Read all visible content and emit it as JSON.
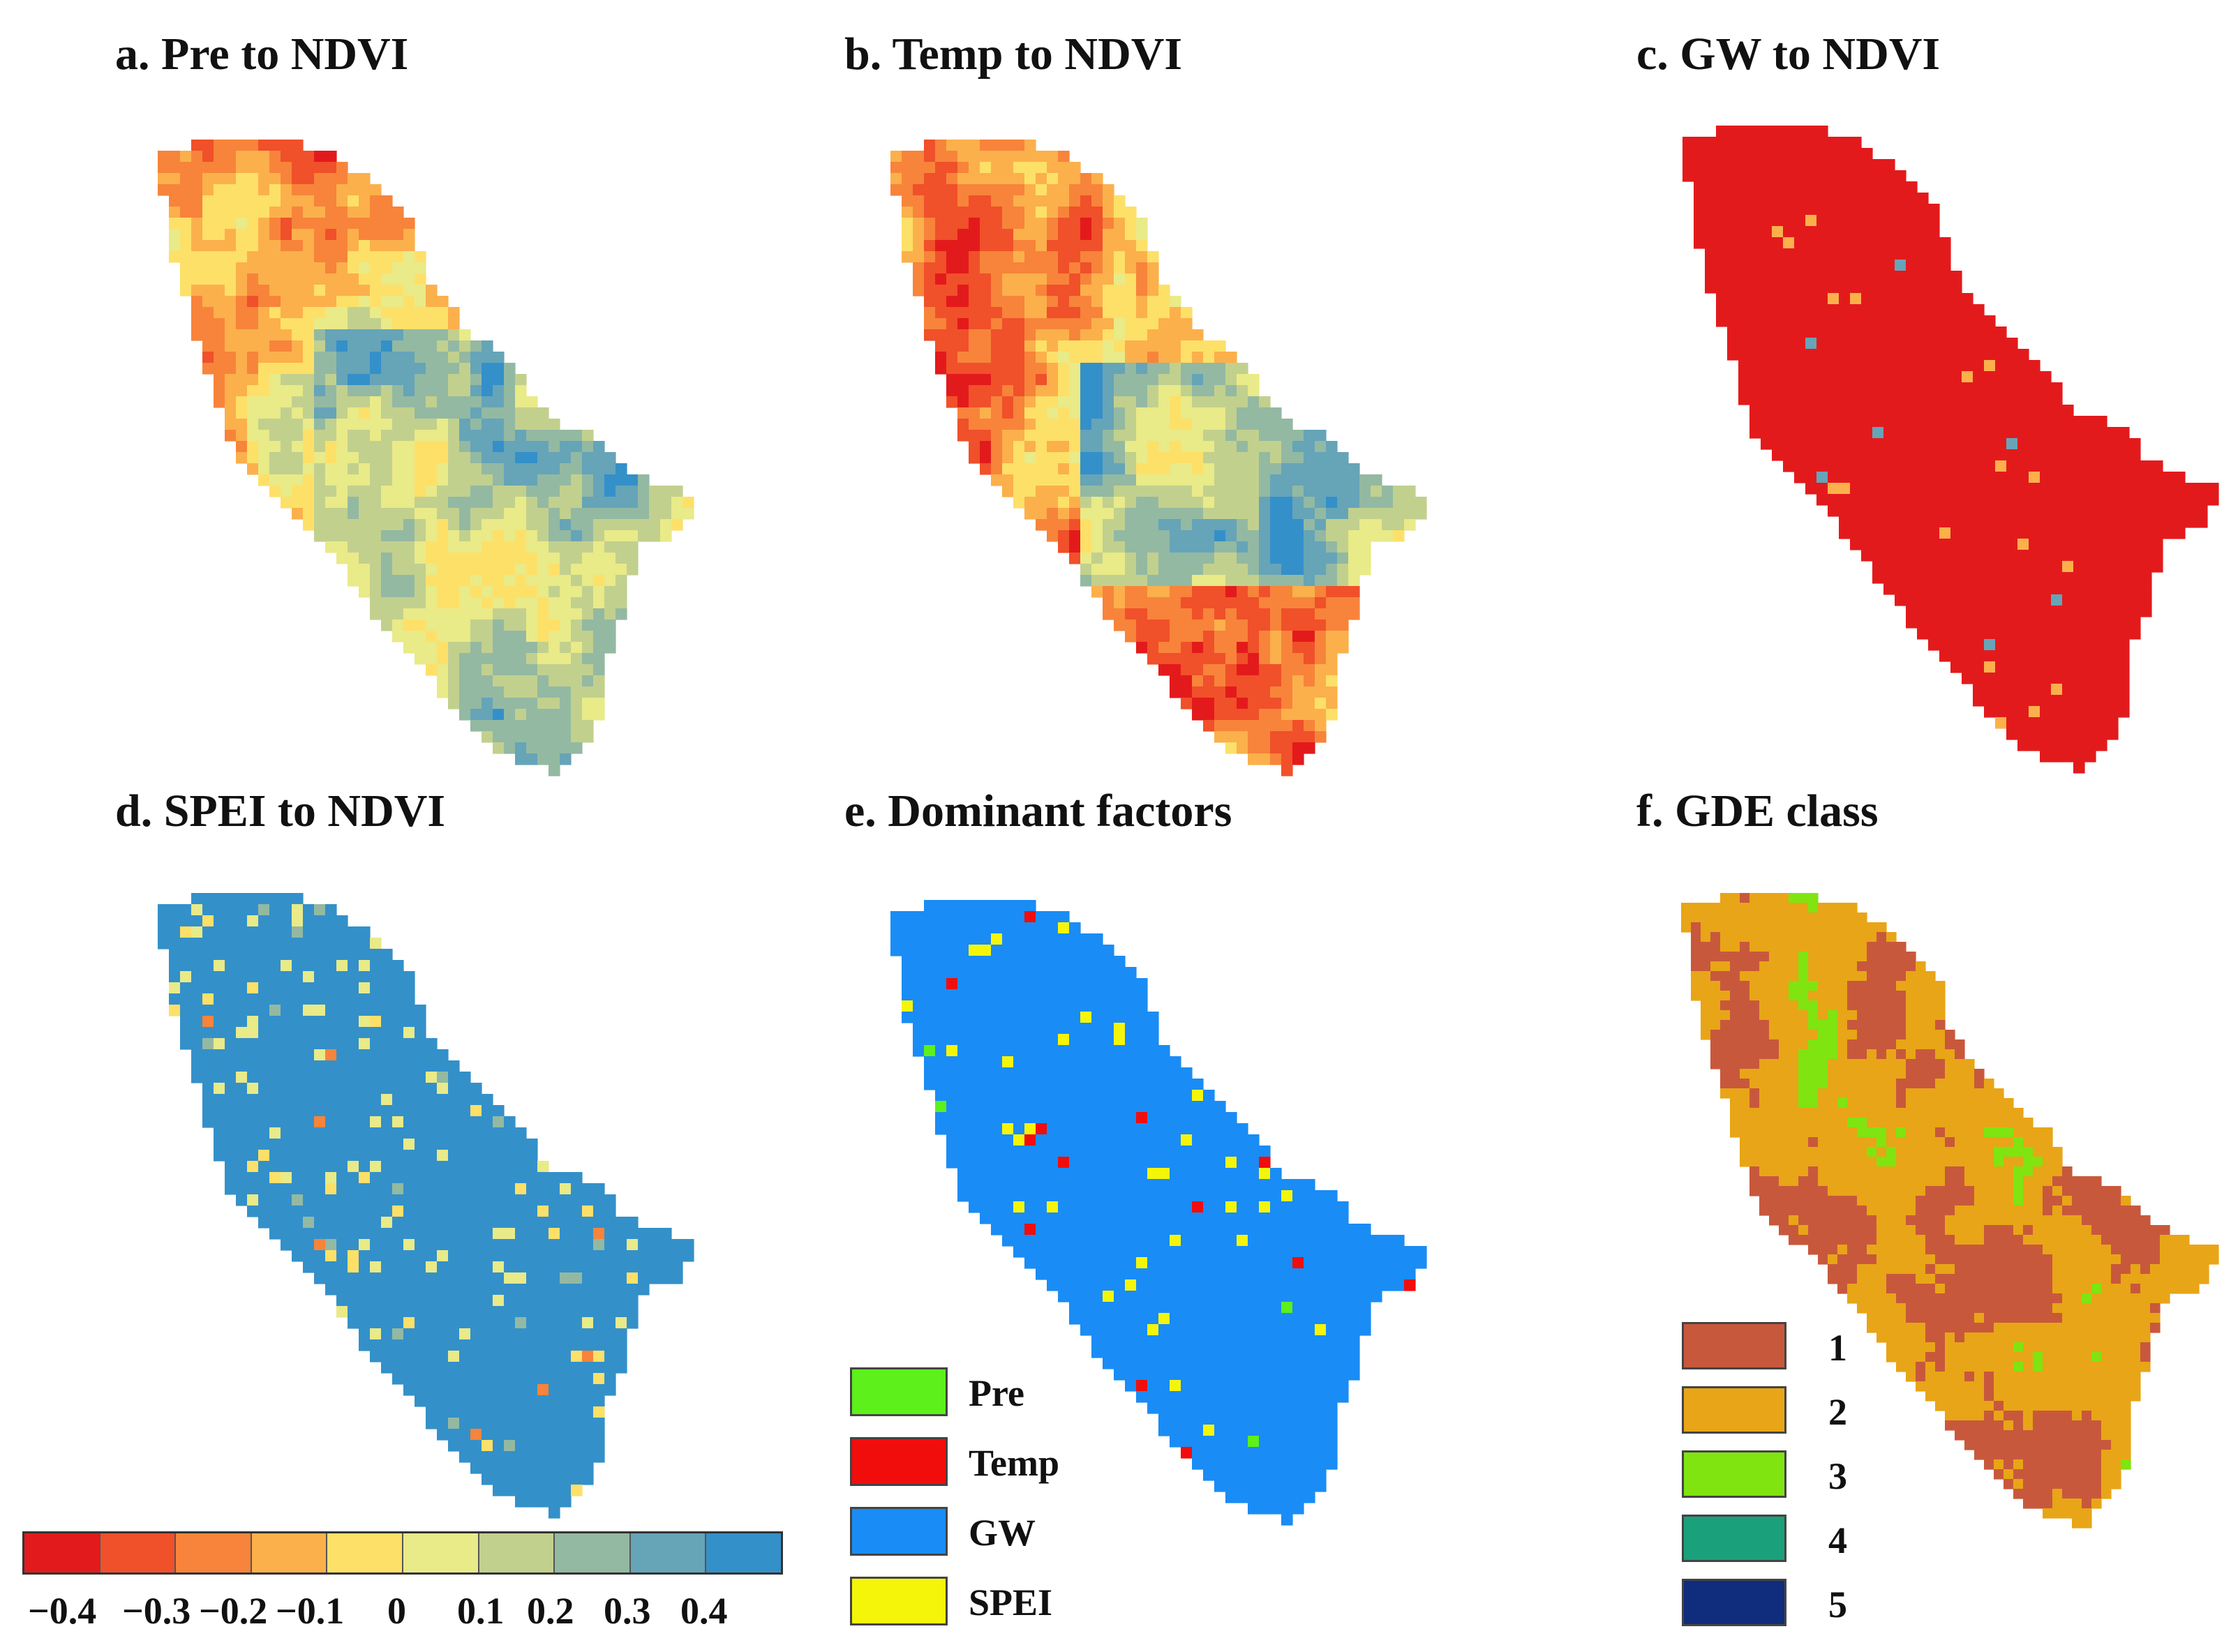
{
  "panels": {
    "a": {
      "title": "a. Pre to NDVI"
    },
    "b": {
      "title": "b. Temp to NDVI"
    },
    "c": {
      "title": "c. GW to NDVI"
    },
    "d": {
      "title": "d. SPEI to NDVI"
    },
    "e": {
      "title": "e. Dominant factors"
    },
    "f": {
      "title": "f. GDE class"
    }
  },
  "colorbar": {
    "colors": [
      "#e31a1c",
      "#f0502a",
      "#f7843a",
      "#fbb04c",
      "#fde068",
      "#e9ea88",
      "#c2d08e",
      "#93b9a2",
      "#66a4b8",
      "#3490c9"
    ],
    "ticks": [
      "−0.4",
      "−0.3",
      "−0.2",
      "−0.1",
      "0",
      "0.1",
      "0.2",
      "0.3",
      "0.4"
    ]
  },
  "factor_legend": [
    {
      "label": "Pre",
      "color": "#5df01a"
    },
    {
      "label": "Temp",
      "color": "#f20d0d"
    },
    {
      "label": "GW",
      "color": "#1a8cf5"
    },
    {
      "label": "SPEI",
      "color": "#f5f50a"
    }
  ],
  "gde_legend": [
    {
      "label": "1",
      "color": "#c8583c"
    },
    {
      "label": "2",
      "color": "#e8a517"
    },
    {
      "label": "3",
      "color": "#7fe40f"
    },
    {
      "label": "4",
      "color": "#1aa07a"
    },
    {
      "label": "5",
      "color": "#0f2c7d"
    }
  ]
}
